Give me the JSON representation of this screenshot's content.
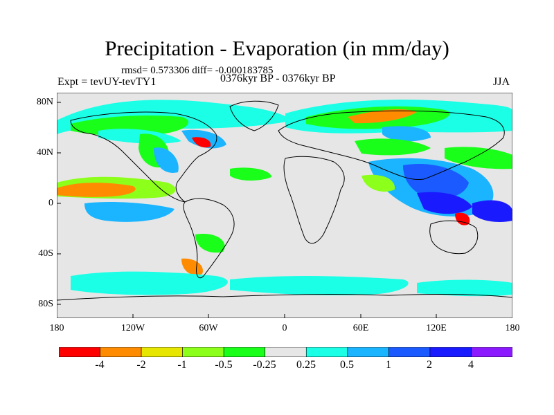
{
  "title": "Precipitation - Evaporation (in mm/day)",
  "stats": "rmsd= 0.573306 diff= -0.000183785",
  "experiment": "Expt = tevUY-tevTY1",
  "period": "0376kyr BP - 0376kyr BP",
  "season": "JJA",
  "y_axis_labels": [
    "80N",
    "40N",
    "0",
    "40S",
    "80S"
  ],
  "x_axis_labels": [
    "180",
    "120W",
    "60W",
    "0",
    "60E",
    "120E",
    "180"
  ],
  "colorbar": {
    "labels": [
      "-4",
      "-2",
      "-1",
      "-0.5",
      "-0.25",
      "0.25",
      "0.5",
      "1",
      "2",
      "4"
    ],
    "colors": [
      "#ff0000",
      "#ff8c00",
      "#e6e600",
      "#8cff1a",
      "#1aff1a",
      "#e6e6e6",
      "#1affe6",
      "#1ab4ff",
      "#1a5aff",
      "#1a1aff",
      "#8c1aff"
    ]
  },
  "colors": {
    "land_outline": "#000000",
    "background_field": "#e6e6e6"
  }
}
